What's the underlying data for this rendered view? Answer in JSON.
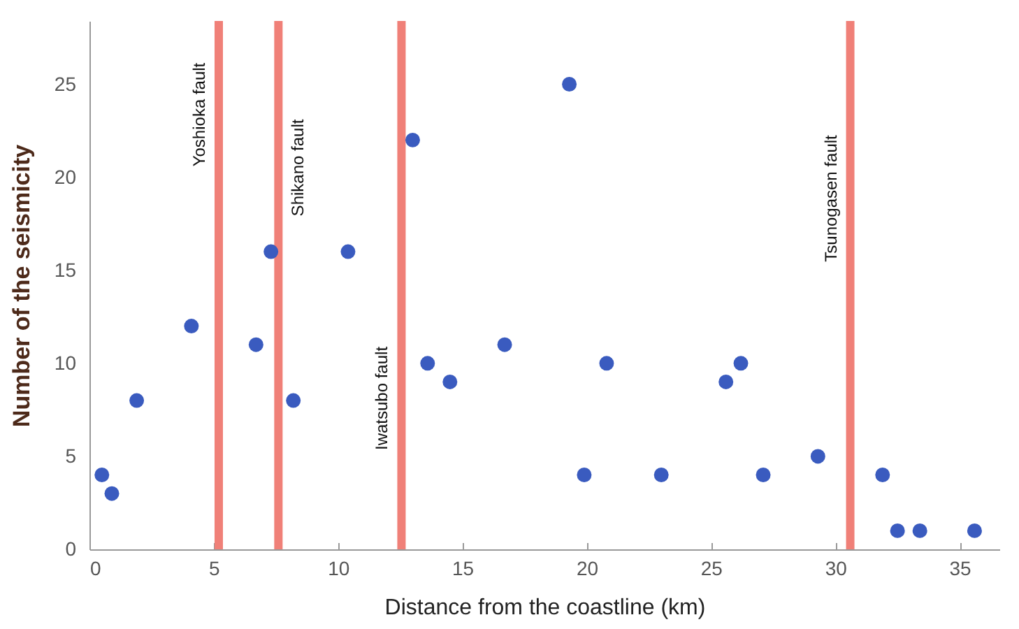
{
  "chart_data": {
    "type": "scatter",
    "xlabel": "Distance from the coastline (km)",
    "ylabel": "Number of the seismicity",
    "x": [
      0.5,
      0.9,
      1.9,
      4.1,
      6.7,
      7.3,
      8.2,
      10.4,
      13.0,
      13.6,
      14.5,
      16.7,
      19.3,
      19.9,
      20.8,
      23.0,
      25.6,
      26.2,
      27.1,
      29.3,
      31.9,
      32.5,
      33.4,
      35.6
    ],
    "series": [
      {
        "color": "#3a5bbf",
        "values": [
          4,
          3,
          8,
          12,
          11,
          16,
          8,
          16,
          22,
          10,
          9,
          11,
          25,
          4,
          10,
          4,
          9,
          10,
          4,
          5,
          4,
          1,
          1,
          1
        ]
      }
    ],
    "marker": "circle",
    "xlim": [
      0,
      36.6
    ],
    "ylim": [
      0,
      28.4
    ],
    "xticks": [
      0,
      5,
      10,
      15,
      20,
      25,
      30,
      35
    ],
    "yticks": [
      0,
      5,
      10,
      15,
      20,
      25
    ],
    "ref_lines": [
      {
        "axis": "x",
        "value": 5.2,
        "label": "Yoshioka fault",
        "color": "#f08078"
      },
      {
        "axis": "x",
        "value": 7.6,
        "label": "Shikano fault",
        "color": "#f08078"
      },
      {
        "axis": "x",
        "value": 12.55,
        "label": "Iwatsubo fault",
        "color": "#f08078"
      },
      {
        "axis": "x",
        "value": 30.6,
        "label": "Tsunogasen fault",
        "color": "#f08078"
      }
    ]
  }
}
